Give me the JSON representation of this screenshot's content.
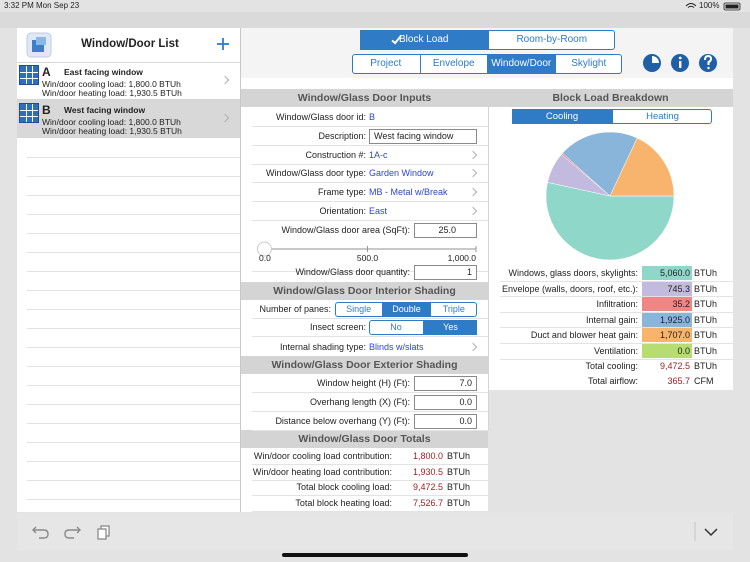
{
  "status_bar": {
    "time": "3:32 PM",
    "date": "Mon Sep 23",
    "battery": "100%"
  },
  "sidebar": {
    "title": "Window/Door List",
    "selected": 1,
    "items": [
      {
        "letter": "A",
        "name": "East facing window",
        "cooling": "Win/door cooling load: 1,800.0 BTUh",
        "heating": "Win/door heating load: 1,930.5 BTUh"
      },
      {
        "letter": "B",
        "name": "West facing window",
        "cooling": "Win/door cooling load: 1,800.0 BTUh",
        "heating": "Win/door heating load: 1,930.5 BTUh"
      }
    ]
  },
  "toolbar": {
    "modes": [
      "Block Load",
      "Room-by-Room"
    ],
    "selected_mode": 0,
    "tabs": [
      "Project",
      "Envelope",
      "Window/Door",
      "Skylight"
    ],
    "selected_tab": 2
  },
  "inputs": {
    "title": "Window/Glass Door Inputs",
    "id": {
      "label": "Window/Glass door id:",
      "value": "B"
    },
    "description": {
      "label": "Description:",
      "value": "West facing window"
    },
    "construction": {
      "label": "Construction #:",
      "value": "1A-c"
    },
    "door_type": {
      "label": "Window/Glass door type:",
      "value": "Garden Window"
    },
    "frame_type": {
      "label": "Frame type:",
      "value": "MB - Metal w/Break"
    },
    "orientation": {
      "label": "Orientation:",
      "value": "East"
    },
    "area": {
      "label": "Window/Glass door area (SqFt):",
      "value": {
        "value": 25,
        "label": "25.0"
      }
    },
    "area_slider": [
      {
        "value": 0,
        "label": "0.0"
      },
      {
        "value": 500,
        "label": "500.0"
      },
      {
        "value": 1000,
        "label": "1,000.0"
      }
    ],
    "quantity": {
      "label": "Window/Glass door quantity:",
      "value": "1"
    }
  },
  "interior_shading": {
    "title": "Window/Glass Door Interior Shading",
    "panes": {
      "label": "Number of panes:",
      "options": [
        "Single",
        "Double",
        "Triple"
      ],
      "selected": 1
    },
    "insect_screen": {
      "label": "Insect screen:",
      "options": [
        "No",
        "Yes"
      ],
      "selected": 1
    },
    "internal_shading": {
      "label": "Internal shading type:",
      "value": "Blinds w/slats"
    }
  },
  "exterior_shading": {
    "title": "Window/Glass Door Exterior Shading",
    "fields": [
      {
        "label": "Window height (H) (Ft):",
        "value": "7.0"
      },
      {
        "label": "Overhang length (X) (Ft):",
        "value": "0.0"
      },
      {
        "label": "Distance below overhang (Y) (Ft):",
        "value": "0.0"
      }
    ]
  },
  "totals": {
    "title": "Window/Glass Door Totals",
    "rows": [
      {
        "label": "Win/door cooling load contribution:",
        "value": "1,800.0",
        "unit": "BTUh"
      },
      {
        "label": "Win/door heating load contribution:",
        "value": "1,930.5",
        "unit": "BTUh"
      },
      {
        "label": "Total block cooling load:",
        "value": "9,472.5",
        "unit": "BTUh"
      },
      {
        "label": "Total block heating load:",
        "value": "7,526.7",
        "unit": "BTUh"
      }
    ]
  },
  "breakdown": {
    "title": "Block Load Breakdown",
    "tabs": [
      "Cooling",
      "Heating"
    ],
    "selected": 0,
    "rows": [
      {
        "label": "Windows, glass doors, skylights:",
        "value": 5060,
        "value_label": "5,060.0",
        "unit": "BTUh",
        "color": "#8fd8c9"
      },
      {
        "label": "Envelope (walls, doors, roof, etc.):",
        "value": 745.3,
        "value_label": "745.3",
        "unit": "BTUh",
        "color": "#c3badf"
      },
      {
        "label": "Infiltration:",
        "value": 35.2,
        "value_label": "35.2",
        "unit": "BTUh",
        "color": "#f08585"
      },
      {
        "label": "Internal gain:",
        "value": 1925,
        "value_label": "1,925.0",
        "unit": "BTUh",
        "color": "#89b5da"
      },
      {
        "label": "Duct and blower heat gain:",
        "value": 1707,
        "value_label": "1,707.0",
        "unit": "BTUh",
        "color": "#f8b46c"
      },
      {
        "label": "Ventilation:",
        "value": 0,
        "value_label": "0.0",
        "unit": "BTUh",
        "color": "#b6dc72"
      }
    ],
    "total_cooling": {
      "label": "Total cooling:",
      "value": "9,472.5",
      "unit": "BTUh"
    },
    "total_airflow": {
      "label": "Total airflow:",
      "value": "365.7",
      "unit": "CFM"
    }
  }
}
